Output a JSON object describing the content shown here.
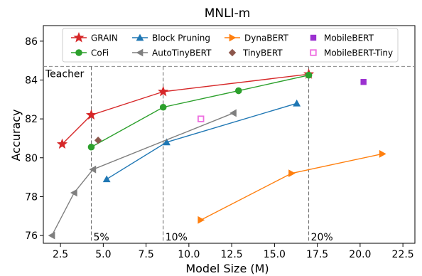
{
  "chart_data": {
    "type": "line",
    "title": "MNLI-m",
    "xlabel": "Model Size (M)",
    "ylabel": "Accuracy",
    "xlim": [
      1.5,
      23.2
    ],
    "ylim": [
      75.6,
      86.8
    ],
    "xticks": [
      2.5,
      5.0,
      7.5,
      10.0,
      12.5,
      15.0,
      17.5,
      20.0,
      22.5
    ],
    "xtick_labels": [
      "2.5",
      "5.0",
      "7.5",
      "10.0",
      "12.5",
      "15.0",
      "17.5",
      "20.0",
      "22.5"
    ],
    "yticks": [
      76,
      78,
      80,
      82,
      84,
      86
    ],
    "ytick_labels": [
      "76",
      "78",
      "80",
      "82",
      "84",
      "86"
    ],
    "grid": false,
    "legend_position": "top",
    "teacher": {
      "label": "Teacher",
      "y": 84.7
    },
    "size_markers": [
      {
        "label": "5%",
        "x": 4.3
      },
      {
        "label": "10%",
        "x": 8.5
      },
      {
        "label": "20%",
        "x": 17.0
      }
    ],
    "series": [
      {
        "name": "GRAIN",
        "color": "#d62728",
        "marker": "star",
        "line": true,
        "x": [
          2.6,
          4.3,
          8.5,
          17.0
        ],
        "y": [
          80.7,
          82.2,
          83.4,
          84.3
        ]
      },
      {
        "name": "CoFi",
        "color": "#2ca02c",
        "marker": "circle",
        "line": true,
        "x": [
          4.3,
          8.5,
          12.9,
          17.0
        ],
        "y": [
          80.55,
          82.6,
          83.45,
          84.25
        ]
      },
      {
        "name": "Block Pruning",
        "color": "#1f77b4",
        "marker": "triangle-up",
        "line": true,
        "x": [
          5.2,
          8.7,
          16.3
        ],
        "y": [
          78.9,
          80.8,
          82.8
        ]
      },
      {
        "name": "AutoTinyBERT",
        "color": "#7f7f7f",
        "marker": "triangle-left",
        "line": true,
        "x": [
          2.0,
          3.3,
          4.4,
          12.6
        ],
        "y": [
          76.0,
          78.2,
          79.4,
          82.3
        ]
      },
      {
        "name": "DynaBERT",
        "color": "#ff7f0e",
        "marker": "triangle-right",
        "line": true,
        "x": [
          10.7,
          16.0,
          21.3
        ],
        "y": [
          76.8,
          79.2,
          80.2
        ]
      },
      {
        "name": "TinyBERT",
        "color": "#8c564b",
        "marker": "diamond",
        "line": false,
        "x": [
          4.7
        ],
        "y": [
          80.9
        ]
      },
      {
        "name": "MobileBERT",
        "color": "#9b30d0",
        "marker": "square",
        "line": false,
        "x": [
          20.2
        ],
        "y": [
          83.9
        ]
      },
      {
        "name": "MobileBERT-Tiny",
        "color": "#ee6ee0",
        "marker": "square-open",
        "line": false,
        "x": [
          10.7
        ],
        "y": [
          82.0
        ]
      }
    ]
  }
}
